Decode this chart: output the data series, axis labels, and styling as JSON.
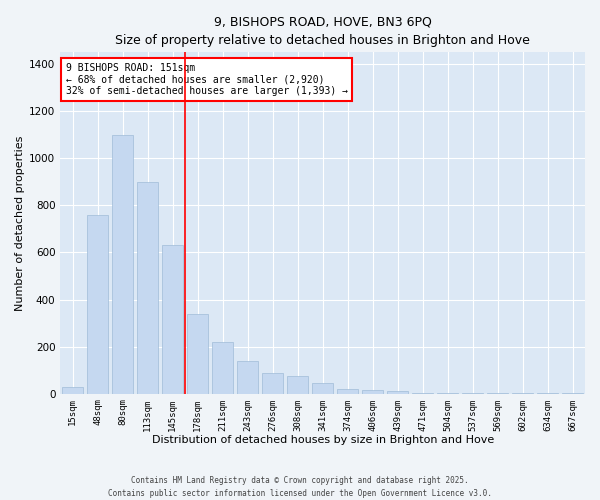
{
  "title": "9, BISHOPS ROAD, HOVE, BN3 6PQ",
  "subtitle": "Size of property relative to detached houses in Brighton and Hove",
  "xlabel": "Distribution of detached houses by size in Brighton and Hove",
  "ylabel": "Number of detached properties",
  "bar_color": "#c5d8f0",
  "bar_edge_color": "#a0bcd8",
  "background_color": "#dce8f5",
  "grid_color": "#ffffff",
  "fig_background": "#f0f4f8",
  "categories": [
    "15sqm",
    "48sqm",
    "80sqm",
    "113sqm",
    "145sqm",
    "178sqm",
    "211sqm",
    "243sqm",
    "276sqm",
    "308sqm",
    "341sqm",
    "374sqm",
    "406sqm",
    "439sqm",
    "471sqm",
    "504sqm",
    "537sqm",
    "569sqm",
    "602sqm",
    "634sqm",
    "667sqm"
  ],
  "values": [
    30,
    760,
    1100,
    900,
    630,
    340,
    220,
    140,
    90,
    75,
    45,
    20,
    15,
    10,
    5,
    3,
    2,
    1,
    1,
    1,
    2
  ],
  "ylim": [
    0,
    1450
  ],
  "yticks": [
    0,
    200,
    400,
    600,
    800,
    1000,
    1200,
    1400
  ],
  "red_line_bin": 4,
  "annotation_title": "9 BISHOPS ROAD: 151sqm",
  "annotation_line1": "← 68% of detached houses are smaller (2,920)",
  "annotation_line2": "32% of semi-detached houses are larger (1,393) →",
  "footer_line1": "Contains HM Land Registry data © Crown copyright and database right 2025.",
  "footer_line2": "Contains public sector information licensed under the Open Government Licence v3.0."
}
